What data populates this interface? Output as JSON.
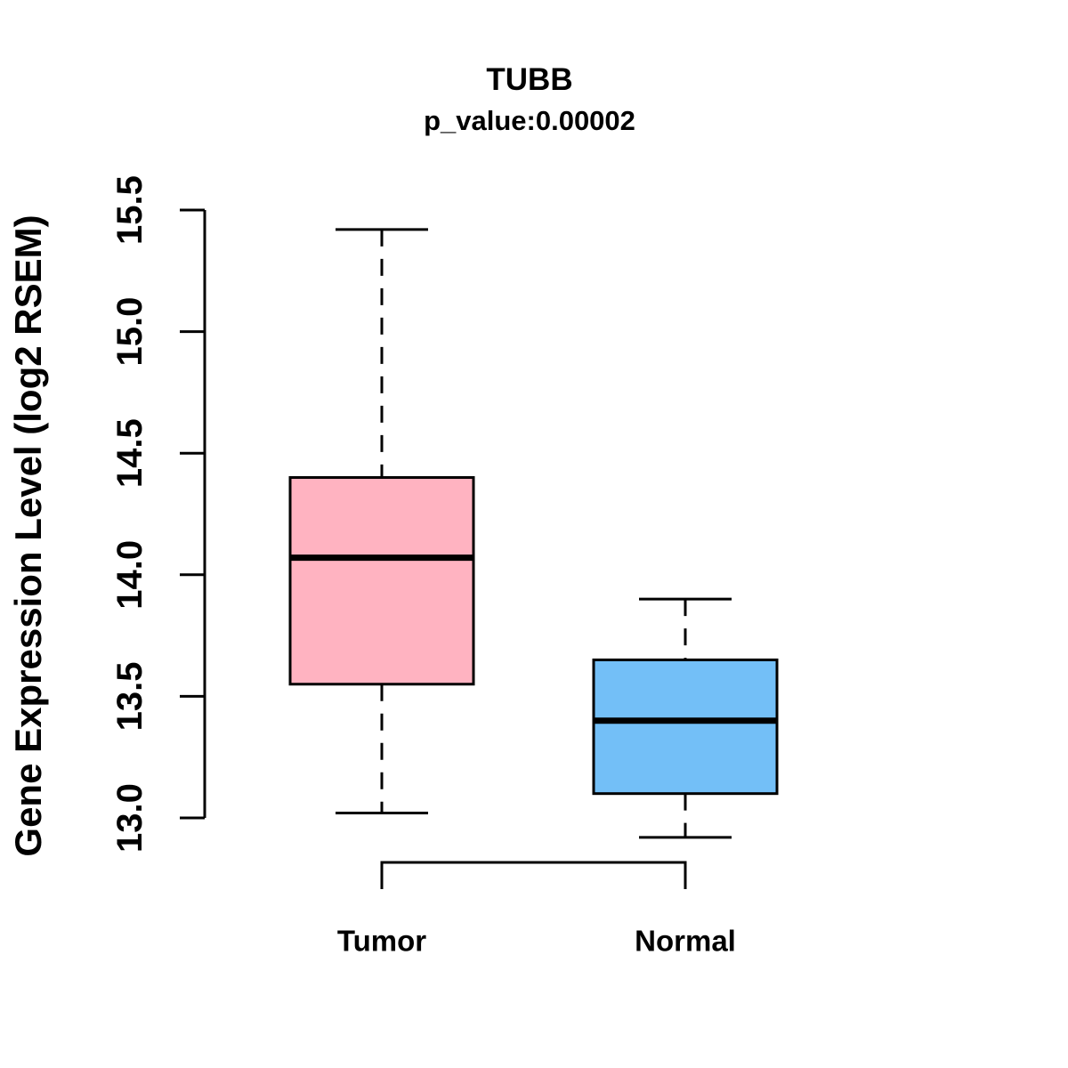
{
  "chart_data": {
    "type": "boxplot",
    "title": "TUBB",
    "subtitle": "p_value:0.00002",
    "p_value": 2e-05,
    "ylabel": "Gene Expression Level (log2 RSEM)",
    "ylim": [
      12.75,
      15.55
    ],
    "yticks": [
      13.0,
      13.5,
      14.0,
      14.5,
      15.0,
      15.5
    ],
    "ytick_labels": [
      "13.0",
      "13.5",
      "14.0",
      "14.5",
      "15.0",
      "15.5"
    ],
    "grid": false,
    "legend": "none",
    "categories": [
      "Tumor",
      "Normal"
    ],
    "groups": [
      {
        "label": "Tumor",
        "color": "#FFB3C1",
        "whisker_low": 13.02,
        "q1": 13.55,
        "median": 14.07,
        "q3": 14.4,
        "whisker_high": 15.42,
        "outliers": []
      },
      {
        "label": "Normal",
        "color": "#73BFF7",
        "whisker_low": 12.92,
        "q1": 13.1,
        "median": 13.4,
        "q3": 13.65,
        "whisker_high": 13.9,
        "outliers": []
      }
    ],
    "significance_bracket": {
      "between": [
        "Tumor",
        "Normal"
      ],
      "shape": "downward"
    },
    "colors": {
      "box_border": "#000000",
      "median": "#000000",
      "axis": "#000000",
      "text": "#000000",
      "background": "#ffffff"
    }
  }
}
